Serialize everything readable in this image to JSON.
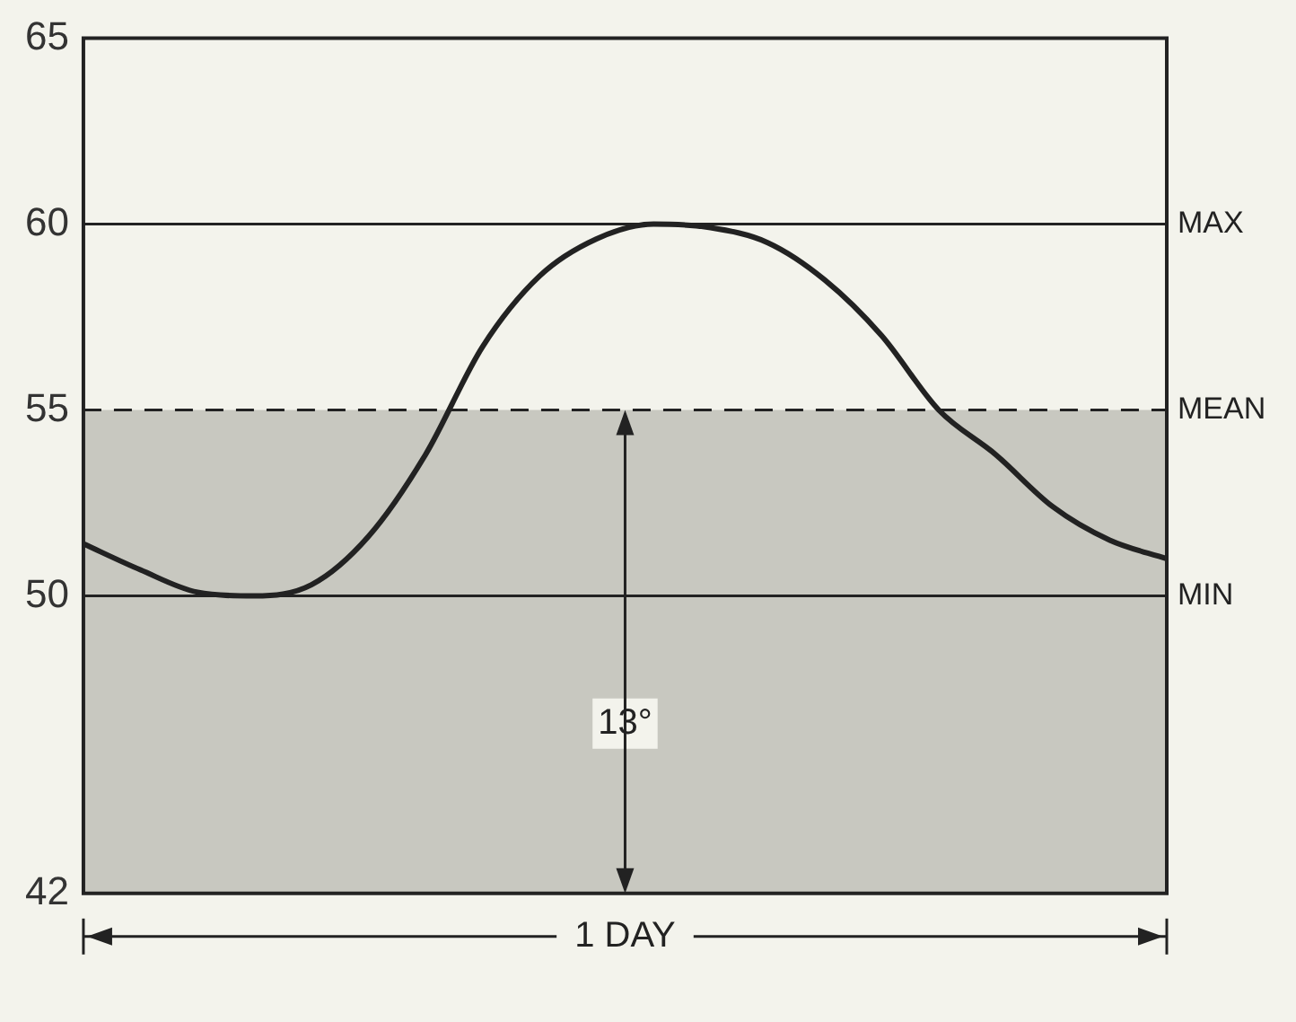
{
  "chart_data": {
    "type": "line",
    "categories": [
      null,
      null,
      null,
      null,
      null,
      null,
      null,
      null,
      null,
      null,
      null,
      null,
      null,
      null,
      null,
      null,
      null,
      null,
      null,
      null
    ],
    "series": [
      {
        "color": "#222222",
        "values": [
          51.4,
          50.7,
          50.1,
          50.0,
          50.3,
          51.6,
          53.8,
          56.7,
          58.6,
          59.6,
          60.0,
          59.9,
          59.5,
          58.5,
          57.0,
          55.0,
          53.8,
          52.4,
          51.5,
          51.0
        ]
      }
    ],
    "ylim": [
      42,
      65
    ],
    "yticks": [
      42,
      50,
      55,
      60,
      65
    ],
    "grid": false,
    "legend": false,
    "marker": "none",
    "line_style": "solid",
    "ref_lines": [
      {
        "axis": "y",
        "value": 60,
        "label": "MAX",
        "color": "#222222",
        "line_style": "solid"
      },
      {
        "axis": "y",
        "value": 55,
        "label": "MEAN",
        "color": "#222222",
        "line_style": "dashed"
      },
      {
        "axis": "y",
        "value": 50,
        "label": "MIN",
        "color": "#222222",
        "line_style": "solid"
      }
    ],
    "bands": [
      {
        "axis": "y",
        "from": 42,
        "to": 55,
        "color": "#c8c8c0"
      }
    ],
    "annotations": [
      "13°",
      "1 DAY"
    ]
  }
}
